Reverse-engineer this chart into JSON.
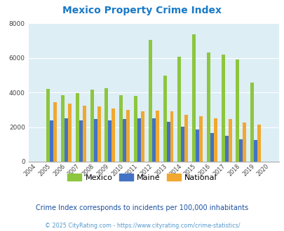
{
  "title": "Mexico Property Crime Index",
  "years": [
    2004,
    2005,
    2006,
    2007,
    2008,
    2009,
    2010,
    2011,
    2012,
    2013,
    2014,
    2015,
    2016,
    2017,
    2018,
    2019,
    2020
  ],
  "mexico": [
    0,
    4200,
    3850,
    3950,
    4150,
    4250,
    3850,
    3800,
    7050,
    4950,
    6050,
    7350,
    6300,
    6200,
    5900,
    4550,
    0
  ],
  "maine": [
    0,
    2400,
    2500,
    2400,
    2470,
    2400,
    2470,
    2500,
    2520,
    2320,
    2020,
    1870,
    1650,
    1500,
    1310,
    1240,
    0
  ],
  "national": [
    0,
    3450,
    3340,
    3250,
    3200,
    3060,
    2970,
    2920,
    2940,
    2910,
    2720,
    2620,
    2500,
    2470,
    2250,
    2130,
    0
  ],
  "mexico_color": "#8dc63f",
  "maine_color": "#4472c4",
  "national_color": "#f0a830",
  "bg_color": "#ddeef5",
  "ylim": [
    0,
    8000
  ],
  "yticks": [
    0,
    2000,
    4000,
    6000,
    8000
  ],
  "subtitle": "Crime Index corresponds to incidents per 100,000 inhabitants",
  "footer": "© 2025 CityRating.com - https://www.cityrating.com/crime-statistics/",
  "title_color": "#1a7ac7",
  "subtitle_color": "#1a4fa0",
  "footer_color": "#5599cc"
}
